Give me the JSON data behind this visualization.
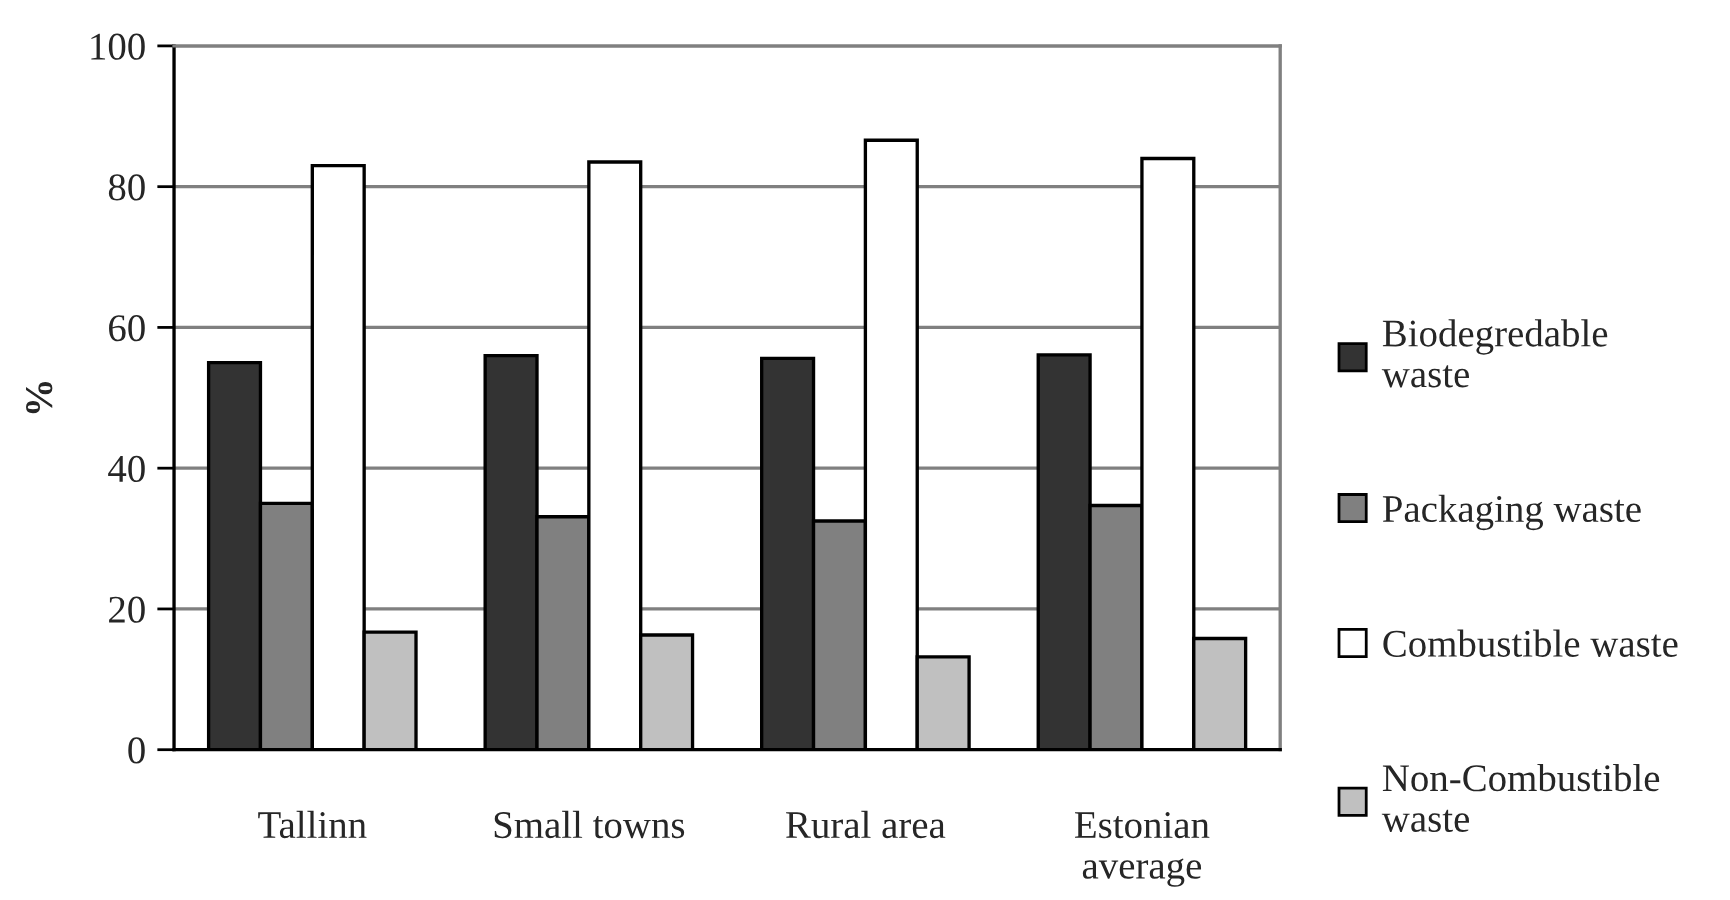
{
  "chart_data": {
    "type": "bar",
    "ylabel": "%",
    "categories": [
      "Tallinn",
      "Small towns",
      "Rural area",
      "Estonian average"
    ],
    "series": [
      {
        "name": "Biodegredable waste",
        "color": "#333333",
        "values": [
          55.0,
          56.0,
          55.6,
          56.1
        ]
      },
      {
        "name": "Packaging waste",
        "color": "#808080",
        "values": [
          35.0,
          33.1,
          32.5,
          34.7
        ]
      },
      {
        "name": "Combustible waste",
        "color": "#ffffff",
        "values": [
          83.0,
          83.5,
          86.6,
          84.0
        ]
      },
      {
        "name": "Non-Combustible waste",
        "color": "#c0c0c0",
        "values": [
          16.7,
          16.3,
          13.2,
          15.8
        ]
      }
    ],
    "ylim": [
      0,
      100
    ],
    "yticks": [
      0,
      20,
      40,
      60,
      80,
      100
    ],
    "grid": "y",
    "legend": "right"
  }
}
